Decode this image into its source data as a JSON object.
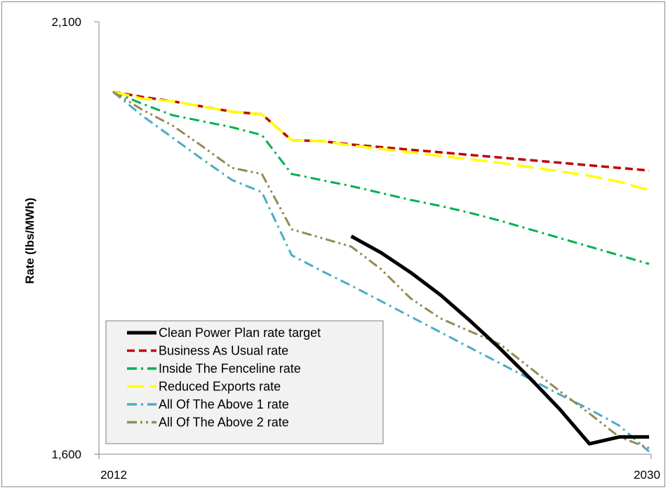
{
  "chart_data": {
    "type": "line",
    "title": "",
    "xlabel": "",
    "ylabel": "Rate (lbs/MWh)",
    "x_tick_labels": [
      "2012",
      "2030"
    ],
    "y_tick_labels": [
      "2,100",
      "1,600"
    ],
    "xlim": [
      2012,
      2030
    ],
    "ylim": [
      1600,
      2100
    ],
    "grid": false,
    "legend_position": "bottom-left",
    "series": [
      {
        "name": "Clean Power Plan rate target",
        "color": "#000000",
        "dash": "solid",
        "x": [
          2020,
          2021,
          2022,
          2023,
          2024,
          2025,
          2026,
          2027,
          2028,
          2029,
          2030
        ],
        "y": [
          1852,
          1833,
          1810,
          1784,
          1754,
          1722,
          1688,
          1652,
          1612,
          1620,
          1620
        ]
      },
      {
        "name": "Business As Usual rate",
        "color": "#c00000",
        "dash": "shortdash",
        "x": [
          2012,
          2013,
          2014,
          2015,
          2016,
          2017,
          2018,
          2019,
          2020,
          2021,
          2022,
          2023,
          2024,
          2025,
          2026,
          2027,
          2028,
          2029,
          2030
        ],
        "y": [
          2019,
          2013,
          2008,
          2002,
          1996,
          1993,
          1963,
          1962,
          1958,
          1955,
          1952,
          1949,
          1946,
          1943,
          1940,
          1937,
          1934,
          1931,
          1928
        ]
      },
      {
        "name": "Inside The Fenceline rate",
        "color": "#00b050",
        "dash": "dashdot",
        "x": [
          2012,
          2013,
          2014,
          2015,
          2016,
          2017,
          2018,
          2019,
          2020,
          2021,
          2022,
          2023,
          2024,
          2025,
          2026,
          2027,
          2028,
          2029,
          2030
        ],
        "y": [
          2019,
          2005,
          1992,
          1985,
          1978,
          1969,
          1924,
          1917,
          1910,
          1902,
          1894,
          1887,
          1879,
          1870,
          1860,
          1850,
          1840,
          1830,
          1820
        ]
      },
      {
        "name": "Reduced Exports rate",
        "color": "#ffff00",
        "dash": "longdash",
        "x": [
          2012,
          2013,
          2014,
          2015,
          2016,
          2017,
          2018,
          2019,
          2020,
          2021,
          2022,
          2023,
          2024,
          2025,
          2026,
          2027,
          2028,
          2029,
          2030
        ],
        "y": [
          2019,
          2011,
          2008,
          2002,
          1996,
          1993,
          1963,
          1962,
          1957,
          1953,
          1949,
          1945,
          1941,
          1937,
          1932,
          1927,
          1922,
          1915,
          1905
        ]
      },
      {
        "name": "All Of The Above 1 rate",
        "color": "#4bacc6",
        "dash": "dashdot",
        "x": [
          2012,
          2013,
          2014,
          2015,
          2016,
          2017,
          2018,
          2019,
          2020,
          2021,
          2022,
          2023,
          2024,
          2025,
          2026,
          2027,
          2028,
          2029,
          2030
        ],
        "y": [
          2019,
          1991,
          1966,
          1941,
          1917,
          1903,
          1830,
          1812,
          1795,
          1777,
          1759,
          1741,
          1723,
          1705,
          1687,
          1669,
          1652,
          1633,
          1603
        ]
      },
      {
        "name": "All Of The Above 2 rate",
        "color": "#948a54",
        "dash": "dashdotdot",
        "x": [
          2012,
          2013,
          2014,
          2015,
          2016,
          2017,
          2018,
          2019,
          2020,
          2021,
          2022,
          2023,
          2024,
          2025,
          2026,
          2027,
          2028,
          2029,
          2030
        ],
        "y": [
          2019,
          1998,
          1980,
          1956,
          1931,
          1924,
          1860,
          1850,
          1840,
          1814,
          1780,
          1757,
          1742,
          1727,
          1700,
          1673,
          1647,
          1620,
          1607
        ]
      }
    ]
  }
}
